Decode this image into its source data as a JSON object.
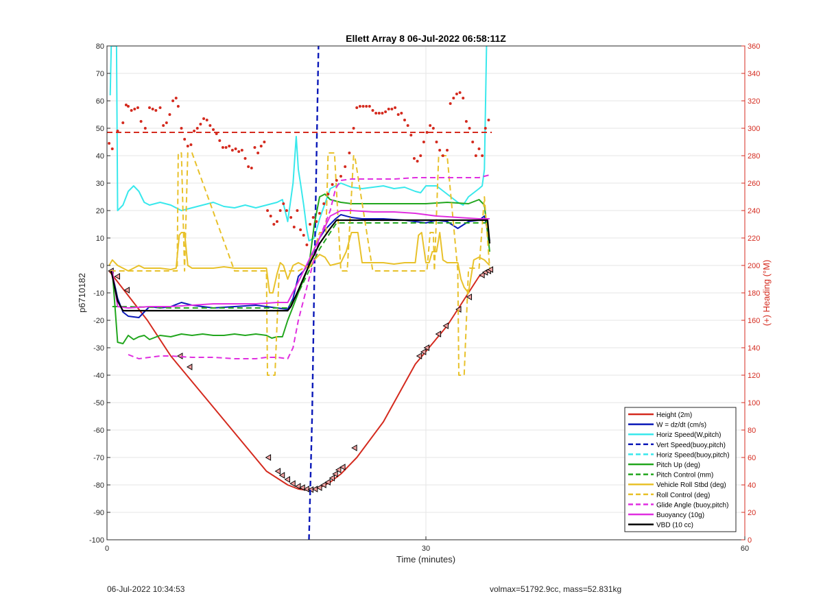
{
  "footer": {
    "left_timestamp": "06-Jul-2022 10:34:53",
    "right_summary": "volmax=51792.9cc, mass=52.831kg"
  },
  "chart_data": {
    "type": "line",
    "title": "Ellett Array 8 06-Jul-2022 06:58:11Z",
    "xlabel": "Time (minutes)",
    "ylabel_left": "p6710182",
    "ylabel_right": "(+) Heading (°M)",
    "xlim": [
      0,
      60
    ],
    "ylim_left": [
      -100,
      80
    ],
    "ylim_right": [
      0,
      360
    ],
    "xticks": [
      0,
      30,
      60
    ],
    "yticks_left": [
      80,
      70,
      60,
      50,
      40,
      30,
      20,
      10,
      0,
      -10,
      -20,
      -30,
      -40,
      -50,
      -60,
      -70,
      -80,
      -90,
      -100
    ],
    "yticks_right": [
      360,
      340,
      320,
      300,
      280,
      260,
      240,
      220,
      200,
      180,
      160,
      140,
      120,
      100,
      80,
      60,
      40,
      20,
      0
    ],
    "grid": true,
    "legend_position": "bottom-right",
    "colors": {
      "red": "#d42a1e",
      "blue": "#0a18b8",
      "cyan": "#38e8ec",
      "green": "#21a61d",
      "yellow": "#e8c12a",
      "magenta": "#e02ee0",
      "black": "#000000",
      "right_axis": "#d42a1e"
    },
    "legend": [
      {
        "name": "Height (2m)",
        "color": "#d42a1e",
        "dash": false
      },
      {
        "name": "W = dz/dt (cm/s)",
        "color": "#0a18b8",
        "dash": false
      },
      {
        "name": "Horiz Speed(W,pitch)",
        "color": "#38e8ec",
        "dash": false
      },
      {
        "name": "Vert Speed(buoy,pitch)",
        "color": "#0a18b8",
        "dash": true
      },
      {
        "name": "Horiz Speed(buoy,pitch)",
        "color": "#38e8ec",
        "dash": true
      },
      {
        "name": "Pitch Up (deg)",
        "color": "#21a61d",
        "dash": false
      },
      {
        "name": "Pitch Control (mm)",
        "color": "#21a61d",
        "dash": true
      },
      {
        "name": "Vehicle Roll Stbd (deg)",
        "color": "#e8c12a",
        "dash": false
      },
      {
        "name": "Roll Control (deg)",
        "color": "#e8c12a",
        "dash": true
      },
      {
        "name": "Glide Angle (buoy,pitch)",
        "color": "#e02ee0",
        "dash": true
      },
      {
        "name": "Buoyancy (10g)",
        "color": "#e02ee0",
        "dash": false
      },
      {
        "name": "VBD (10 cc)",
        "color": "#000000",
        "dash": false
      }
    ],
    "series": [
      {
        "key": "height",
        "color": "#d42a1e",
        "dash": false,
        "width": 2,
        "x": [
          0.2,
          3.8,
          6.0,
          9.0,
          12.0,
          15.0,
          17.0,
          18.0,
          19.0,
          20.0,
          21.0,
          22.0,
          23.5,
          26.0,
          29.0,
          32.0,
          35.0,
          36.0
        ],
        "y": [
          -2,
          -20,
          -33,
          -47,
          -61,
          -75,
          -80,
          -81.5,
          -82,
          -81,
          -79,
          -76,
          -70,
          -57,
          -36,
          -22,
          -4,
          -2
        ]
      },
      {
        "key": "height_markers",
        "color": "#d42a1e",
        "markers": "triangle",
        "x": [
          0.4,
          1.0,
          1.9,
          6.9,
          7.8,
          15.2,
          16.1,
          16.5,
          17.0,
          17.5,
          18.0,
          18.4,
          18.8,
          19.2,
          19.6,
          20.0,
          20.4,
          20.8,
          21.2,
          21.5,
          21.8,
          22.2,
          23.3,
          29.4,
          29.8,
          30.1,
          31.2,
          31.9,
          33.1,
          34.1,
          35.3,
          35.6,
          35.9,
          36.1
        ],
        "y": [
          -2,
          -4,
          -9,
          -33,
          -37,
          -70,
          -75,
          -76.5,
          -78,
          -79.5,
          -80.5,
          -81,
          -81.5,
          -81.7,
          -81.5,
          -81,
          -80,
          -79,
          -77.5,
          -76,
          -74.5,
          -73.5,
          -66.5,
          -33,
          -31.5,
          -30,
          -25,
          -22,
          -16,
          -11.5,
          -3.5,
          -2.5,
          -2,
          -1.5
        ]
      },
      {
        "key": "w",
        "color": "#0a18b8",
        "dash": false,
        "width": 2,
        "x": [
          0.5,
          1.0,
          1.5,
          2.0,
          3.0,
          4.0,
          5.0,
          6.0,
          7.0,
          8.0,
          10.0,
          12.0,
          14.0,
          16.0,
          17.0,
          17.5,
          18.0,
          18.5,
          19.0,
          19.5,
          20.0,
          20.5,
          21.0,
          21.5,
          22.0,
          23.0,
          24.0,
          26.0,
          28.0,
          30.0,
          31.0,
          32.0,
          33.0,
          34.0,
          35.0,
          35.5,
          36.0
        ],
        "y": [
          -3,
          -12,
          -17,
          -18.5,
          -19,
          -15,
          -15.5,
          -15,
          -13.5,
          -14.5,
          -15.5,
          -15,
          -14.5,
          -15.5,
          -16,
          -12,
          -4,
          -2,
          1,
          6,
          10,
          13,
          15,
          17,
          18.5,
          17.5,
          17,
          17,
          16.5,
          15.5,
          16.5,
          16,
          13.5,
          16,
          16.5,
          18,
          9
        ]
      },
      {
        "key": "horiz_speed",
        "color": "#38e8ec",
        "dash": false,
        "width": 2,
        "x": [
          0.3,
          0.4,
          0.6,
          0.8,
          0.9,
          1.0,
          1.5,
          2.0,
          2.5,
          3.0,
          3.5,
          4.0,
          5.0,
          6.0,
          7.0,
          8.0,
          9.0,
          10.0,
          11.0,
          12.0,
          13.0,
          14.0,
          15.0,
          16.0,
          16.5,
          17.0,
          17.5,
          17.8,
          18.0,
          18.2,
          18.5,
          18.8,
          19.0,
          19.5,
          20.0,
          21.0,
          22.0,
          23.0,
          24.0,
          25.0,
          26.0,
          27.0,
          28.0,
          29.0,
          29.5,
          30.0,
          31.0,
          32.0,
          33.0,
          33.5,
          34.0,
          35.0,
          35.3,
          35.5,
          35.7
        ],
        "y": [
          62,
          80,
          80,
          80,
          80,
          20,
          22,
          27,
          29,
          27,
          23,
          22,
          23,
          22,
          20,
          21,
          22,
          23,
          21.5,
          21,
          22,
          21,
          22,
          23,
          24,
          16,
          30,
          47,
          35,
          30,
          22,
          13,
          9,
          10,
          17,
          28,
          30,
          28.5,
          28,
          28.5,
          29,
          28,
          28.5,
          27,
          26.5,
          29,
          29,
          26,
          23,
          22,
          25,
          28,
          29,
          35,
          80
        ]
      },
      {
        "key": "vert_speed_buoy",
        "color": "#0a18b8",
        "dash": true,
        "width": 2.4,
        "x": [
          19.0,
          19.3,
          19.5,
          19.9
        ],
        "y": [
          -100,
          -55,
          -5,
          80
        ]
      },
      {
        "key": "pitch_up",
        "color": "#21a61d",
        "dash": false,
        "width": 2,
        "x": [
          0.5,
          1.0,
          1.5,
          2.0,
          2.5,
          3.0,
          3.5,
          4.0,
          5.0,
          6.0,
          7.0,
          8.0,
          9.0,
          10.0,
          11.0,
          12.0,
          13.0,
          14.0,
          15.0,
          15.5,
          16.0,
          16.5,
          17.0,
          17.5,
          18.0,
          18.5,
          19.0,
          19.5,
          20.0,
          20.5,
          21.0,
          22.0,
          23.0,
          24.0,
          26.0,
          28.0,
          30.0,
          32.0,
          34.0,
          35.0,
          35.5,
          36.0
        ],
        "y": [
          -2,
          -28,
          -28.5,
          -25.5,
          -27,
          -26,
          -25.5,
          -27,
          -25.5,
          -26,
          -25,
          -25.5,
          -25,
          -25.5,
          -25.5,
          -25,
          -25.5,
          -25,
          -25.5,
          -26.5,
          -26,
          -26,
          -20,
          -15,
          -10,
          -5,
          0,
          15,
          25,
          26,
          24,
          23,
          22.5,
          22.5,
          22.5,
          22.5,
          22.5,
          23,
          22.5,
          24,
          22,
          5
        ]
      },
      {
        "key": "pitch_control",
        "color": "#21a61d",
        "dash": true,
        "width": 2,
        "x": [
          0.5,
          1.0,
          2.0,
          6.0,
          12.0,
          17.0,
          18.0,
          19.0,
          20.0,
          21.0,
          21.6,
          25.0,
          30.0,
          35.0,
          36.0
        ],
        "y": [
          -15,
          -15,
          -15,
          -15.5,
          -15.5,
          -15.5,
          -10,
          -2,
          6,
          12,
          15.5,
          15.5,
          15.5,
          15.5,
          15.5
        ]
      },
      {
        "key": "vehicle_roll",
        "color": "#e8c12a",
        "dash": false,
        "width": 2,
        "x": [
          0.2,
          0.5,
          1.0,
          1.5,
          2.0,
          2.5,
          3.0,
          3.5,
          4.0,
          5.0,
          6.0,
          6.5,
          6.8,
          7.0,
          7.3,
          7.6,
          8.0,
          9.0,
          10.0,
          11.0,
          12.0,
          13.0,
          14.0,
          14.5,
          15.0,
          15.3,
          15.6,
          16.0,
          16.3,
          16.6,
          17.0,
          17.5,
          18.0,
          18.5,
          19.0,
          19.5,
          20.0,
          20.5,
          21.0,
          22.0,
          22.5,
          23.0,
          23.3,
          23.6,
          24.0,
          25.0,
          26.0,
          27.0,
          28.0,
          29.0,
          29.3,
          29.6,
          30.0,
          30.3,
          30.6,
          31.0,
          31.3,
          31.6,
          32.0,
          32.3,
          32.6,
          33.0,
          33.3,
          33.6,
          34.0,
          34.5,
          35.0,
          35.5,
          36.0
        ],
        "y": [
          0,
          2,
          0,
          -1,
          -2,
          -1,
          0,
          -1,
          -1,
          -1,
          -1.5,
          -1,
          11,
          12,
          12,
          0,
          -1,
          -1,
          -1,
          -0.5,
          -1,
          -1,
          -1,
          -1,
          -1,
          -10,
          -10,
          -3,
          1,
          0,
          -5,
          0,
          1,
          0,
          -1,
          2,
          4,
          3,
          0,
          1,
          5,
          12,
          12,
          12,
          1,
          1,
          1,
          0.5,
          1,
          1,
          11,
          12,
          1,
          1,
          5,
          5,
          12,
          2,
          1,
          1,
          1,
          1,
          -5,
          -8,
          -10,
          2,
          3,
          2,
          0
        ]
      },
      {
        "key": "roll_control",
        "color": "#e8c12a",
        "dash": true,
        "width": 2,
        "x": [
          0.3,
          1.0,
          2.0,
          5.0,
          6.6,
          6.7,
          7.0,
          7.3,
          7.6,
          8.0,
          12.0,
          15.0,
          15.1,
          15.4,
          15.7,
          15.8,
          16.2,
          17.0,
          18.0,
          19.0,
          20.0,
          20.6,
          20.8,
          21.4,
          22.0,
          22.6,
          23.2,
          23.3,
          25.0,
          30.0,
          30.1,
          30.4,
          30.7,
          30.8,
          31.2,
          32.0,
          33.0,
          33.1,
          33.3,
          33.6,
          34.0,
          34.1,
          35.0,
          35.5,
          36.0
        ],
        "y": [
          -2,
          -2,
          -2,
          -2,
          -2,
          41,
          41,
          -2,
          41,
          41,
          -2,
          -2,
          -40,
          -40,
          -40,
          -40,
          -2,
          -2,
          -2,
          0,
          12,
          12,
          41,
          41,
          -2,
          -2,
          40,
          40,
          -2,
          -2,
          -2,
          12,
          12,
          -2,
          40,
          40,
          -2,
          -40,
          -40,
          -40,
          -2,
          -1,
          -1,
          25,
          -1
        ]
      },
      {
        "key": "glide_angle",
        "color": "#e02ee0",
        "dash": true,
        "width": 2,
        "x": [
          2.0,
          3.0,
          4.0,
          5.0,
          6.0,
          8.0,
          10.0,
          12.0,
          14.0,
          15.0,
          16.0,
          17.0,
          17.5,
          18.0,
          19.0,
          20.0,
          21.0,
          21.5,
          22.0,
          23.0,
          25.0,
          27.0,
          29.0,
          31.0,
          33.0,
          35.0,
          36.0
        ],
        "y": [
          -32.5,
          -34,
          -33.5,
          -33,
          -33,
          -33.5,
          -33.5,
          -34,
          -34,
          -33.5,
          -33.5,
          -34,
          -30,
          -20,
          -5,
          10,
          20,
          28,
          31,
          31.5,
          31.5,
          31.5,
          32,
          32,
          32,
          32,
          33
        ]
      },
      {
        "key": "buoyancy",
        "color": "#e02ee0",
        "dash": false,
        "width": 2,
        "x": [
          0.5,
          1.0,
          2.0,
          4.0,
          6.0,
          8.0,
          10.0,
          12.0,
          14.0,
          16.0,
          17.0,
          18.0,
          19.0,
          20.0,
          21.0,
          22.0,
          23.0,
          25.0,
          27.0,
          29.0,
          31.0,
          33.0,
          35.0,
          36.0
        ],
        "y": [
          -2,
          -15,
          -15.5,
          -15,
          -15,
          -14.5,
          -14,
          -14,
          -14,
          -13.5,
          -13.5,
          -6,
          2,
          10,
          18,
          20,
          20,
          19.5,
          19.5,
          19,
          18,
          17.5,
          17,
          17
        ]
      },
      {
        "key": "vbd",
        "color": "#000000",
        "dash": false,
        "width": 2.2,
        "x": [
          0.4,
          1.0,
          1.5,
          3.0,
          10.0,
          17.0,
          17.3,
          18.0,
          19.0,
          20.0,
          21.0,
          21.6,
          22.0,
          30.0,
          35.8,
          36.0
        ],
        "y": [
          -2,
          -13,
          -16.5,
          -16.5,
          -16.5,
          -16.5,
          -15,
          -9,
          0,
          8,
          13.5,
          16.5,
          16.5,
          16.5,
          16.5,
          8
        ]
      }
    ],
    "heading_mean": 297,
    "heading_points": {
      "x": [
        0.2,
        0.5,
        1.0,
        1.5,
        1.8,
        2.0,
        2.3,
        2.6,
        2.9,
        3.2,
        3.6,
        4.0,
        4.3,
        4.6,
        5.0,
        5.3,
        5.6,
        5.9,
        6.2,
        6.5,
        6.7,
        7.0,
        7.3,
        7.6,
        7.9,
        8.2,
        8.5,
        8.8,
        9.1,
        9.4,
        9.7,
        10.0,
        10.3,
        10.6,
        10.9,
        11.2,
        11.5,
        11.8,
        12.1,
        12.4,
        12.7,
        13.0,
        13.3,
        13.6,
        13.9,
        14.2,
        14.5,
        14.8,
        15.1,
        15.4,
        15.7,
        16.0,
        16.3,
        16.6,
        16.9,
        17.3,
        17.6,
        17.9,
        18.2,
        18.5,
        18.8,
        19.1,
        19.4,
        19.7,
        20.0,
        20.4,
        20.8,
        21.2,
        21.6,
        22.0,
        22.4,
        22.8,
        23.2,
        23.5,
        23.8,
        24.1,
        24.4,
        24.7,
        25.0,
        25.3,
        25.6,
        25.9,
        26.2,
        26.5,
        26.8,
        27.1,
        27.4,
        27.7,
        28.0,
        28.3,
        28.6,
        28.9,
        29.2,
        29.5,
        29.8,
        30.1,
        30.4,
        30.7,
        31.0,
        31.3,
        31.6,
        32.0,
        32.3,
        32.6,
        32.9,
        33.2,
        33.5,
        33.8,
        34.1,
        34.4,
        34.7,
        35.0,
        35.3,
        35.6,
        35.9
      ],
      "y": [
        289,
        285,
        298,
        304,
        317,
        316,
        313,
        314,
        315,
        305,
        300,
        315,
        314,
        313,
        315,
        302,
        304,
        310,
        320,
        322,
        316,
        300,
        292,
        287,
        288,
        298,
        300,
        303,
        307,
        306,
        302,
        299,
        296,
        291,
        286,
        286,
        287,
        284,
        285,
        283,
        284,
        278,
        272,
        271,
        286,
        282,
        287,
        290,
        240,
        236,
        230,
        232,
        240,
        245,
        240,
        235,
        228,
        240,
        226,
        222,
        215,
        230,
        235,
        232,
        238,
        245,
        252,
        259,
        262,
        265,
        272,
        282,
        300,
        315,
        316,
        316,
        316,
        316,
        313,
        311,
        311,
        311,
        312,
        314,
        314,
        315,
        310,
        311,
        306,
        302,
        295,
        278,
        276,
        280,
        290,
        297,
        302,
        300,
        290,
        284,
        280,
        284,
        318,
        322,
        325,
        326,
        322,
        305,
        300,
        290,
        280,
        285,
        280,
        300,
        306
      ]
    }
  }
}
